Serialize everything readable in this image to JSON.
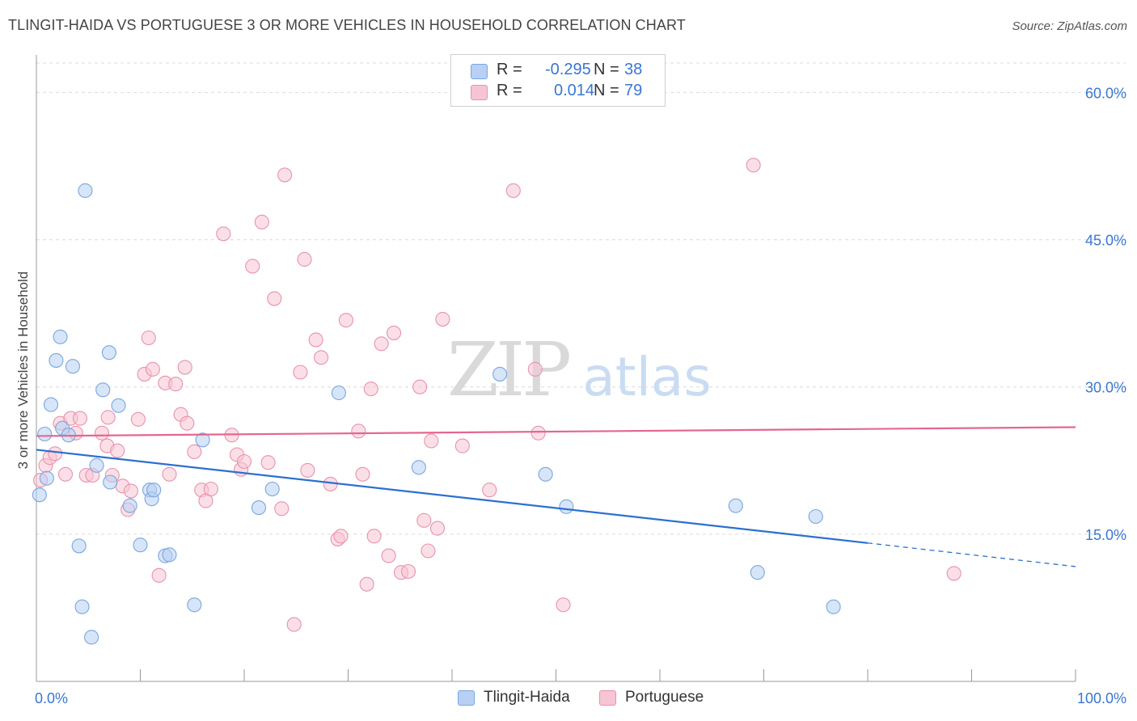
{
  "title": "TLINGIT-HAIDA VS PORTUGUESE 3 OR MORE VEHICLES IN HOUSEHOLD CORRELATION CHART",
  "source": "Source: ZipAtlas.com",
  "watermark": {
    "zip": "ZIP",
    "atlas": "atlas"
  },
  "legend": {
    "rows": [
      {
        "r_label": "R =",
        "r_value": "-0.295",
        "n_label": "N =",
        "n_value": "38"
      },
      {
        "r_label": "R =",
        "r_value": "0.014",
        "n_label": "N =",
        "n_value": "79"
      }
    ]
  },
  "bottom_legend": {
    "items": [
      "Tlingit-Haida",
      "Portuguese"
    ]
  },
  "colors": {
    "series_a_fill": "#b7d0f3",
    "series_a_stroke": "#7aa6df",
    "series_a_line": "#2c6fd1",
    "series_b_fill": "#f7c4d3",
    "series_b_stroke": "#e892ad",
    "series_b_line": "#e4678f",
    "tick_label": "#3a76d2",
    "grid": "#dcdcdc",
    "axis": "#999999"
  },
  "chart_data": {
    "type": "scatter",
    "title": "TLINGIT-HAIDA VS PORTUGUESE 3 OR MORE VEHICLES IN HOUSEHOLD CORRELATION CHART",
    "xlabel": "",
    "ylabel": "3 or more Vehicles in Household",
    "xlim": [
      0,
      100
    ],
    "ylim": [
      0,
      63
    ],
    "x_tick_labels": [
      "0.0%",
      "100.0%"
    ],
    "y_ticks": [
      15,
      30,
      45,
      60
    ],
    "y_tick_labels": [
      "15.0%",
      "30.0%",
      "45.0%",
      "60.0%"
    ],
    "grid": true,
    "legend_position": "top-center",
    "series": [
      {
        "name": "Tlingit-Haida",
        "r": -0.295,
        "n": 38,
        "points": [
          [
            0.3,
            19.0
          ],
          [
            0.8,
            25.2
          ],
          [
            1.0,
            20.7
          ],
          [
            1.4,
            28.2
          ],
          [
            1.9,
            32.7
          ],
          [
            2.3,
            35.1
          ],
          [
            2.5,
            25.8
          ],
          [
            3.1,
            25.1
          ],
          [
            3.5,
            32.1
          ],
          [
            4.1,
            13.8
          ],
          [
            4.4,
            7.6
          ],
          [
            4.7,
            50.0
          ],
          [
            5.3,
            4.5
          ],
          [
            5.8,
            22.0
          ],
          [
            6.4,
            29.7
          ],
          [
            7.0,
            33.5
          ],
          [
            7.1,
            20.3
          ],
          [
            7.9,
            28.1
          ],
          [
            9.0,
            17.9
          ],
          [
            10.0,
            13.9
          ],
          [
            10.9,
            19.5
          ],
          [
            11.1,
            18.6
          ],
          [
            11.3,
            19.5
          ],
          [
            12.4,
            12.8
          ],
          [
            12.8,
            12.9
          ],
          [
            15.2,
            7.8
          ],
          [
            16.0,
            24.6
          ],
          [
            21.4,
            17.7
          ],
          [
            22.7,
            19.6
          ],
          [
            29.1,
            29.4
          ],
          [
            36.8,
            21.8
          ],
          [
            44.6,
            31.3
          ],
          [
            49.0,
            21.1
          ],
          [
            51.0,
            17.8
          ],
          [
            67.3,
            17.9
          ],
          [
            69.4,
            11.1
          ],
          [
            75.0,
            16.8
          ],
          [
            76.7,
            7.6
          ]
        ],
        "trend": {
          "x": [
            0,
            80
          ],
          "y": [
            23.6,
            14.1
          ],
          "dashed_x": [
            80,
            100
          ],
          "dashed_y": [
            14.1,
            11.7
          ]
        }
      },
      {
        "name": "Portuguese",
        "r": 0.014,
        "n": 79,
        "points": [
          [
            0.4,
            20.5
          ],
          [
            0.9,
            22.0
          ],
          [
            1.3,
            22.8
          ],
          [
            1.8,
            23.2
          ],
          [
            2.3,
            26.3
          ],
          [
            2.8,
            21.1
          ],
          [
            3.3,
            26.8
          ],
          [
            3.8,
            25.3
          ],
          [
            4.2,
            26.8
          ],
          [
            4.8,
            21.0
          ],
          [
            5.4,
            21.0
          ],
          [
            6.3,
            25.3
          ],
          [
            6.8,
            24.0
          ],
          [
            6.9,
            26.9
          ],
          [
            7.3,
            21.0
          ],
          [
            7.8,
            23.5
          ],
          [
            8.3,
            19.9
          ],
          [
            8.8,
            17.5
          ],
          [
            9.1,
            19.4
          ],
          [
            9.8,
            26.7
          ],
          [
            10.4,
            31.3
          ],
          [
            10.8,
            35.0
          ],
          [
            11.2,
            31.8
          ],
          [
            11.8,
            10.8
          ],
          [
            12.4,
            30.4
          ],
          [
            12.8,
            21.1
          ],
          [
            13.4,
            30.3
          ],
          [
            13.9,
            27.2
          ],
          [
            14.3,
            32.0
          ],
          [
            14.5,
            26.3
          ],
          [
            15.2,
            23.4
          ],
          [
            15.9,
            19.5
          ],
          [
            16.3,
            18.4
          ],
          [
            16.8,
            19.6
          ],
          [
            18.0,
            45.6
          ],
          [
            18.8,
            25.1
          ],
          [
            19.3,
            23.1
          ],
          [
            19.7,
            21.6
          ],
          [
            20.0,
            22.4
          ],
          [
            20.8,
            42.3
          ],
          [
            21.7,
            46.8
          ],
          [
            22.3,
            22.3
          ],
          [
            22.9,
            39.0
          ],
          [
            23.6,
            17.6
          ],
          [
            23.9,
            51.6
          ],
          [
            24.8,
            5.8
          ],
          [
            25.4,
            31.5
          ],
          [
            25.8,
            43.0
          ],
          [
            26.1,
            21.5
          ],
          [
            26.9,
            34.8
          ],
          [
            27.4,
            33.0
          ],
          [
            28.3,
            20.1
          ],
          [
            29.0,
            14.5
          ],
          [
            29.3,
            14.8
          ],
          [
            29.8,
            36.8
          ],
          [
            31.0,
            25.5
          ],
          [
            31.4,
            21.1
          ],
          [
            31.8,
            9.9
          ],
          [
            32.2,
            29.8
          ],
          [
            32.5,
            14.8
          ],
          [
            33.2,
            34.4
          ],
          [
            33.9,
            12.8
          ],
          [
            34.4,
            35.5
          ],
          [
            35.1,
            11.1
          ],
          [
            35.8,
            11.2
          ],
          [
            36.9,
            30.0
          ],
          [
            37.3,
            16.4
          ],
          [
            37.7,
            13.3
          ],
          [
            38.0,
            24.5
          ],
          [
            38.6,
            15.6
          ],
          [
            39.1,
            36.9
          ],
          [
            41.0,
            24.0
          ],
          [
            43.6,
            19.5
          ],
          [
            45.9,
            50.0
          ],
          [
            48.0,
            31.8
          ],
          [
            48.3,
            25.3
          ],
          [
            50.7,
            7.8
          ],
          [
            69.0,
            52.6
          ],
          [
            88.3,
            11.0
          ]
        ],
        "trend": {
          "x": [
            0,
            100
          ],
          "y": [
            25.0,
            25.9
          ]
        }
      }
    ]
  }
}
